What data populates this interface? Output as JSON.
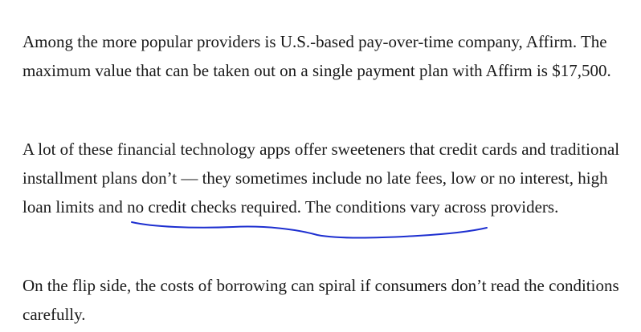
{
  "paragraphs": [
    "Among the more popular providers is U.S.-based pay-over-time company, Affirm. The maximum value that can be taken out on a single payment plan with Affirm is $17,500.",
    "A lot of these financial technology apps offer sweeteners that credit cards and traditional installment plans don’t — they sometimes include no late fees, low or no interest, high loan limits and no credit checks required. The conditions vary across providers.",
    "On the flip side, the costs of borrowing can spiral if consumers don’t read the conditions carefully."
  ],
  "annotation": {
    "color": "#1d2fd0",
    "marks": "high loan limits and no credit checks required."
  }
}
